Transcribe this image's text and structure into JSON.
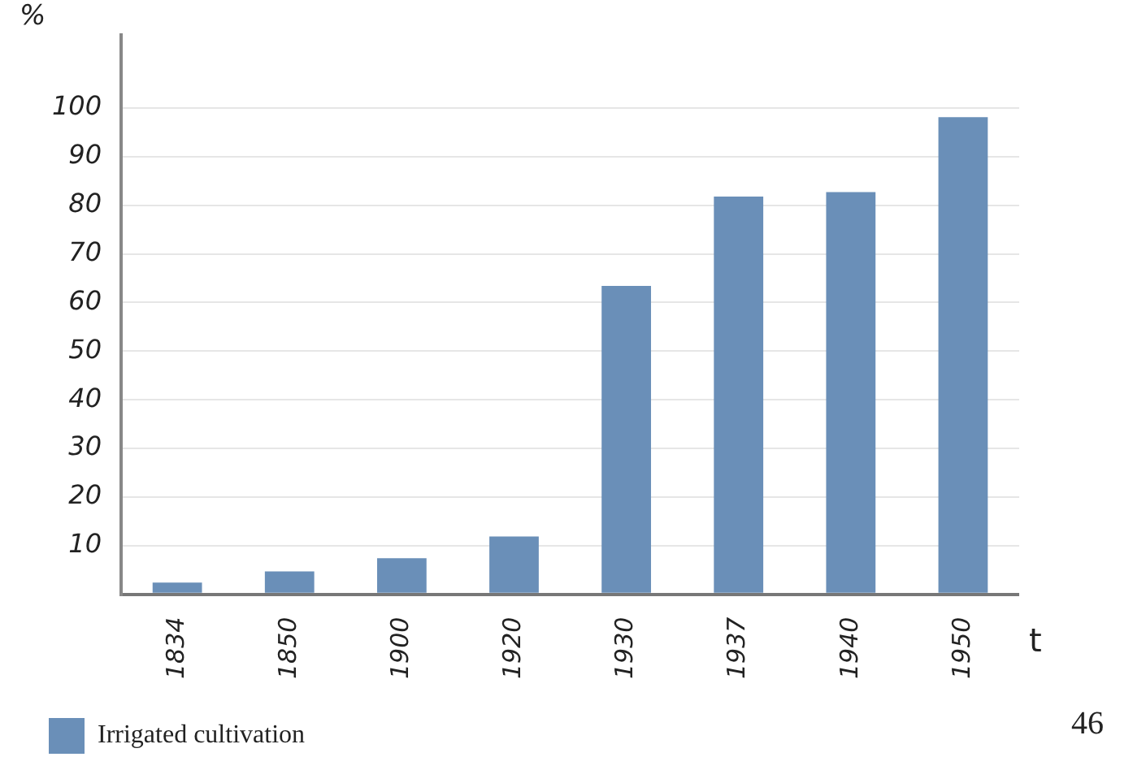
{
  "chart_data": {
    "type": "bar",
    "categories": [
      "1834",
      "1850",
      "1900",
      "1920",
      "1930",
      "1937",
      "1940",
      "1950"
    ],
    "series": [
      {
        "name": "Irrigated cultivation",
        "color": "#6a8fb8",
        "values": [
          2.4,
          4.7,
          7.4,
          11.9,
          63.4,
          81.8,
          82.7,
          98.1
        ]
      }
    ],
    "ylabel": "%",
    "xlabel": "t",
    "annotations": [
      "46"
    ],
    "ylim": [
      0,
      115
    ],
    "yticks": [
      {
        "value": 0,
        "label": null
      },
      10,
      20,
      30,
      40,
      50,
      60,
      70,
      80,
      90,
      100
    ],
    "grid": "y",
    "legend": "bottom left"
  }
}
